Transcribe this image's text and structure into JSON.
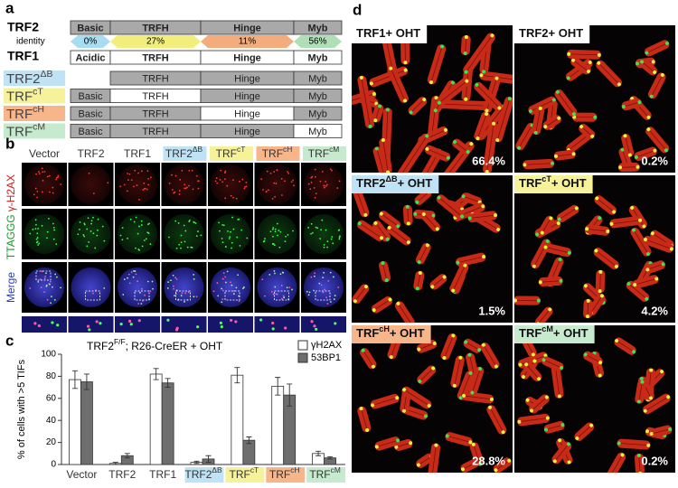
{
  "panel_a": {
    "letter": "a",
    "trf2": {
      "label": "TRF2",
      "domains": [
        "Basic",
        "TRFH",
        "Hinge",
        "Myb"
      ]
    },
    "identity": {
      "label": "identity",
      "values": [
        "0%",
        "27%",
        "11%",
        "56%"
      ],
      "colors": [
        "#9fd8f0",
        "#f1ec6e",
        "#f4a36e",
        "#a6dcae"
      ]
    },
    "trf1": {
      "label": "TRF1",
      "domains": [
        "Acidic",
        "TRFH",
        "Hinge",
        "Myb"
      ]
    },
    "constructs": [
      {
        "name": "TRF2",
        "sup": "ΔB",
        "color": "#bfe3f5",
        "domains": [
          null,
          "TRFH",
          "Hinge",
          "Myb"
        ],
        "shaded": [
          null,
          true,
          true,
          true
        ]
      },
      {
        "name": "TRF",
        "sup": "cT",
        "color": "#f6f29a",
        "domains": [
          "Basic",
          "TRFH",
          "Hinge",
          "Myb"
        ],
        "shaded": [
          true,
          false,
          true,
          true
        ]
      },
      {
        "name": "TRF",
        "sup": "cH",
        "color": "#f7b58a",
        "domains": [
          "Basic",
          "TRFH",
          "Hinge",
          "Myb"
        ],
        "shaded": [
          true,
          true,
          false,
          true
        ]
      },
      {
        "name": "TRF",
        "sup": "cM",
        "color": "#c6eacd",
        "domains": [
          "Basic",
          "TRFH",
          "Hinge",
          "Myb"
        ],
        "shaded": [
          true,
          true,
          true,
          false
        ]
      }
    ]
  },
  "panel_b": {
    "letter": "b",
    "columns": [
      {
        "name": "Vector"
      },
      {
        "name": "TRF2"
      },
      {
        "name": "TRF1"
      },
      {
        "name": "TRF2",
        "sup": "ΔB",
        "color": "#bfe3f5"
      },
      {
        "name": "TRF",
        "sup": "cT",
        "color": "#f6f29a"
      },
      {
        "name": "TRF",
        "sup": "cH",
        "color": "#f7b58a"
      },
      {
        "name": "TRF",
        "sup": "cM",
        "color": "#c6eacd"
      }
    ],
    "row_labels": {
      "telomere": "TTAGGG",
      "h2ax": "γ-H2AX",
      "merge": "Merge"
    }
  },
  "chart_data": {
    "type": "bar",
    "letter": "c",
    "title": {
      "text": "TRF2",
      "sup": "F/F",
      "rest": "; R26-CreER + OHT"
    },
    "y_label": "% of cells with >5 TIFs",
    "categories": [
      "Vector",
      "TRF2",
      "TRF1",
      "TRF2",
      "TRF",
      "TRF",
      "TRF"
    ],
    "category_sup": [
      null,
      null,
      null,
      "ΔB",
      "cT",
      "cH",
      "cM"
    ],
    "category_colors": [
      null,
      null,
      null,
      "#bfe3f5",
      "#f6f29a",
      "#f7b58a",
      "#c6eacd"
    ],
    "series": [
      {
        "name": "γH2AX",
        "color": "#ffffff",
        "values": [
          77,
          1,
          82,
          2,
          81,
          71,
          10
        ],
        "errors": [
          8,
          1,
          5,
          1,
          7,
          8,
          2
        ]
      },
      {
        "name": "53BP1",
        "color": "#6e6e6e",
        "values": [
          75,
          8,
          74,
          5,
          22,
          63,
          6
        ],
        "errors": [
          7,
          2,
          4,
          3,
          3,
          10,
          1
        ]
      }
    ],
    "ylim": [
      0,
      100
    ],
    "yticks": [
      0,
      20,
      40,
      60,
      80,
      100
    ],
    "legend": "upper right"
  },
  "panel_d": {
    "letter": "d",
    "panels": [
      {
        "name": "TRF1",
        "suffix": "+ OHT",
        "percent": "66.4%",
        "color": "#ffffff"
      },
      {
        "name": "TRF2",
        "suffix": "+ OHT",
        "percent": "0.2%",
        "color": "#ffffff"
      },
      {
        "name": "TRF2",
        "sup": "ΔB",
        "suffix": "+ OHT",
        "percent": "1.5%",
        "color": "#bfe3f5"
      },
      {
        "name": "TRF",
        "sup": "cT",
        "suffix": "+ OHT",
        "percent": "4.2%",
        "color": "#f6f29a"
      },
      {
        "name": "TRF",
        "sup": "cH",
        "suffix": "+ OHT",
        "percent": "28.8%",
        "color": "#f7b58a"
      },
      {
        "name": "TRF",
        "sup": "cM",
        "suffix": "+ OHT",
        "percent": "0.2%",
        "color": "#c6eacd"
      }
    ]
  }
}
